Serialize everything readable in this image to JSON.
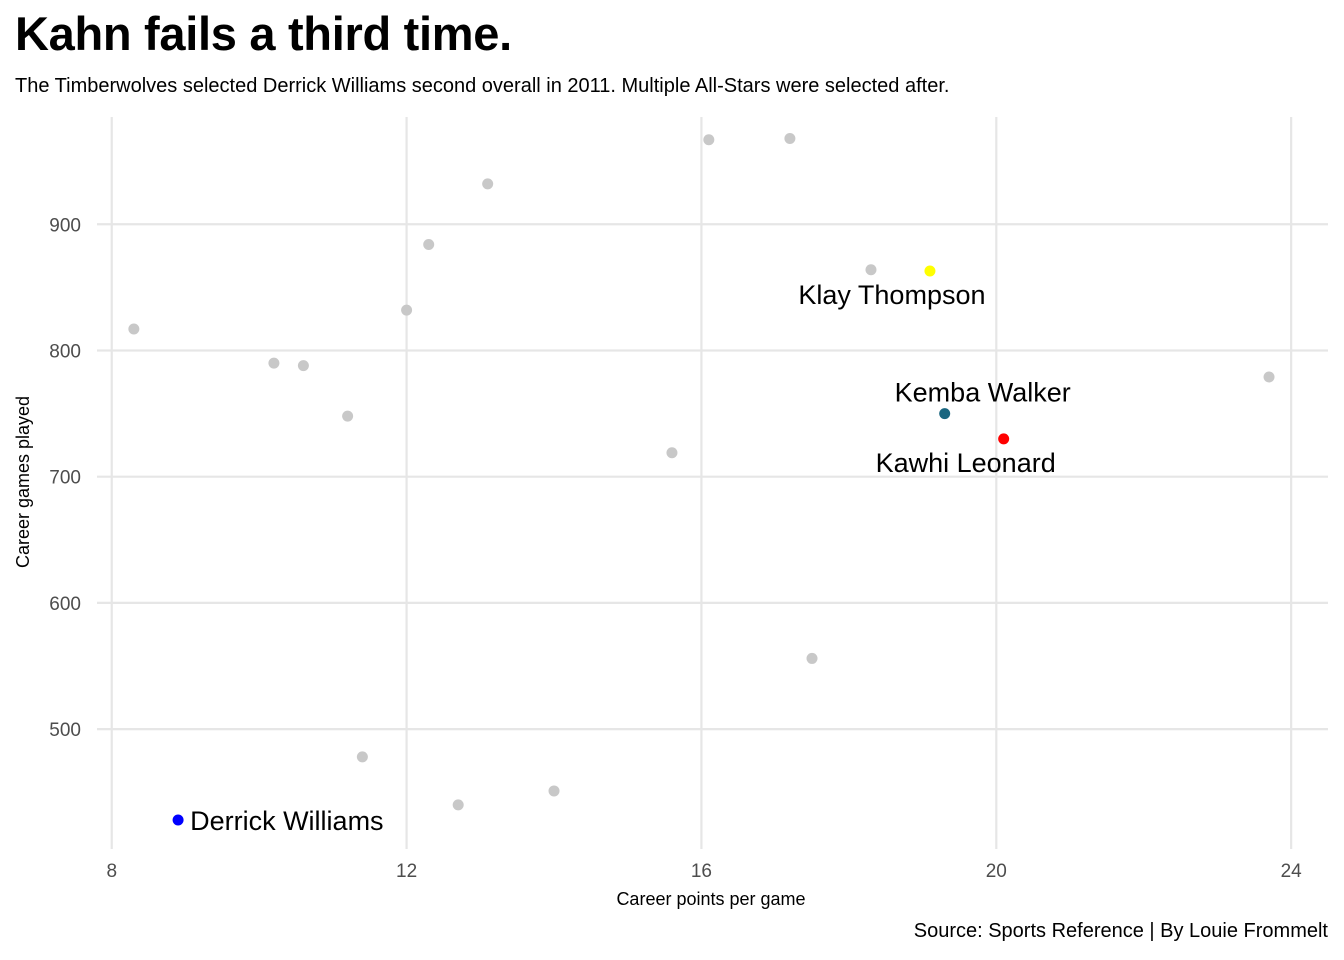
{
  "title": "Kahn fails a third time.",
  "subtitle": "The Timberwolves selected Derrick Williams second overall in 2011. Multiple All-Stars were selected after.",
  "caption": "Source: Sports Reference | By Louie Frommelt",
  "colors": {
    "background": "#ffffff",
    "grid": "#e6e6e6",
    "other_point": "#c8c8c8",
    "derrick_williams": "#0000ff",
    "klay_thompson": "#ffff00",
    "kemba_walker": "#1a6680",
    "kawhi_leonard": "#ff0000",
    "text": "#000000",
    "tick_text": "#4d4d4d"
  },
  "chart_data": {
    "type": "scatter",
    "xlabel": "Career points per game",
    "ylabel": "Career games played",
    "xlim": [
      7.8,
      24.5
    ],
    "ylim": [
      405,
      985
    ],
    "x_ticks": [
      8,
      12,
      16,
      20,
      24
    ],
    "y_ticks": [
      500,
      600,
      700,
      800,
      900
    ],
    "grid": true,
    "legend": "none",
    "points": [
      {
        "x": 8.3,
        "y": 817
      },
      {
        "x": 10.2,
        "y": 790
      },
      {
        "x": 10.6,
        "y": 788
      },
      {
        "x": 11.2,
        "y": 748
      },
      {
        "x": 11.4,
        "y": 478
      },
      {
        "x": 12.0,
        "y": 832
      },
      {
        "x": 12.3,
        "y": 884
      },
      {
        "x": 12.7,
        "y": 440
      },
      {
        "x": 13.1,
        "y": 932
      },
      {
        "x": 14.0,
        "y": 451
      },
      {
        "x": 15.6,
        "y": 719
      },
      {
        "x": 16.1,
        "y": 967
      },
      {
        "x": 17.2,
        "y": 968
      },
      {
        "x": 17.5,
        "y": 556
      },
      {
        "x": 18.3,
        "y": 864
      },
      {
        "x": 23.7,
        "y": 779
      }
    ],
    "highlighted": [
      {
        "label": "Derrick Williams",
        "x": 8.9,
        "y": 428,
        "color": "#0000ff",
        "label_side": "right"
      },
      {
        "label": "Klay Thompson",
        "x": 19.1,
        "y": 863,
        "color": "#ffff00",
        "label_side": "below"
      },
      {
        "label": "Kemba Walker",
        "x": 19.3,
        "y": 750,
        "color": "#1a6680",
        "label_side": "above"
      },
      {
        "label": "Kawhi Leonard",
        "x": 20.1,
        "y": 730,
        "color": "#ff0000",
        "label_side": "below"
      }
    ]
  }
}
